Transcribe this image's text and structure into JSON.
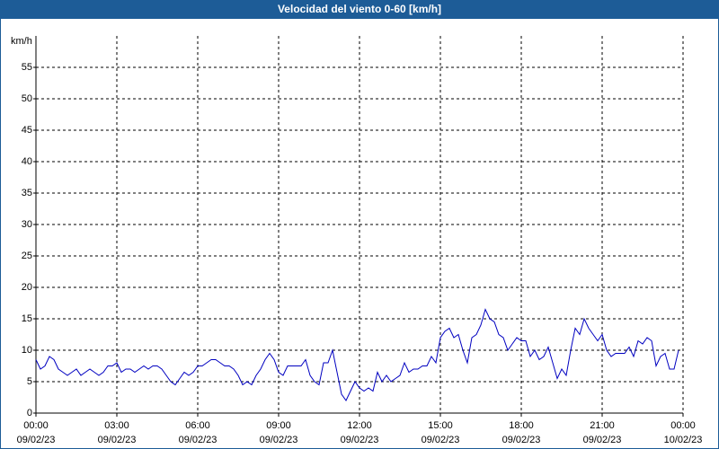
{
  "chart_data": {
    "type": "line",
    "title": "Velocidad del viento 0-60 [km/h]",
    "y_label": "km/h",
    "xlim": [
      0,
      1440
    ],
    "xticks": [
      {
        "value": 0,
        "label": "00:00"
      },
      {
        "value": 180,
        "label": "03:00"
      },
      {
        "value": 360,
        "label": "06:00"
      },
      {
        "value": 540,
        "label": "09:00"
      },
      {
        "value": 720,
        "label": "12:00"
      },
      {
        "value": 900,
        "label": "15:00"
      },
      {
        "value": 1080,
        "label": "18:00"
      },
      {
        "value": 1260,
        "label": "21:00"
      },
      {
        "value": 1440,
        "label": "00:00"
      }
    ],
    "xtick_dates": [
      "09/02/23",
      "09/02/23",
      "09/02/23",
      "09/02/23",
      "09/02/23",
      "09/02/23",
      "09/02/23",
      "09/02/23",
      "10/02/23"
    ],
    "ylim": [
      0,
      60
    ],
    "yticks": [
      0,
      5,
      10,
      15,
      20,
      25,
      30,
      35,
      40,
      45,
      50,
      55
    ],
    "grid": true,
    "series": [
      {
        "color": "#0000c0",
        "x": [
          0,
          10,
          20,
          30,
          40,
          50,
          60,
          70,
          80,
          90,
          100,
          110,
          120,
          130,
          140,
          150,
          160,
          170,
          180,
          190,
          200,
          210,
          220,
          230,
          240,
          250,
          260,
          270,
          280,
          290,
          300,
          310,
          320,
          330,
          340,
          350,
          360,
          370,
          380,
          390,
          400,
          410,
          420,
          430,
          440,
          450,
          460,
          470,
          480,
          490,
          500,
          510,
          520,
          530,
          540,
          550,
          560,
          570,
          580,
          590,
          600,
          610,
          620,
          630,
          640,
          650,
          660,
          670,
          680,
          690,
          700,
          710,
          720,
          730,
          740,
          750,
          760,
          770,
          780,
          790,
          800,
          810,
          820,
          830,
          840,
          850,
          860,
          870,
          880,
          890,
          900,
          910,
          920,
          930,
          940,
          950,
          960,
          970,
          980,
          990,
          1000,
          1010,
          1020,
          1030,
          1040,
          1050,
          1060,
          1070,
          1080,
          1090,
          1100,
          1110,
          1120,
          1130,
          1140,
          1150,
          1160,
          1170,
          1180,
          1190,
          1200,
          1210,
          1220,
          1230,
          1240,
          1250,
          1260,
          1270,
          1280,
          1290,
          1300,
          1310,
          1320,
          1330,
          1340,
          1350,
          1360,
          1370,
          1380,
          1390,
          1400,
          1410,
          1420,
          1430
        ],
        "values": [
          8.5,
          7,
          7.5,
          9,
          8.5,
          7,
          6.5,
          6,
          6.5,
          7,
          6,
          6.5,
          7,
          6.5,
          6,
          6.5,
          7.5,
          7.5,
          8,
          6.5,
          7,
          7,
          6.5,
          7,
          7.5,
          7,
          7.5,
          7.5,
          7,
          6,
          5,
          4.5,
          5.5,
          6.5,
          6,
          6.5,
          7.5,
          7.5,
          8,
          8.5,
          8.5,
          8,
          7.5,
          7.5,
          7,
          6,
          4.5,
          5,
          4.5,
          6,
          7,
          8.5,
          9.5,
          8.5,
          6.5,
          6,
          7.5,
          7.5,
          7.5,
          7.5,
          8.5,
          6,
          5,
          4.5,
          8,
          8,
          10,
          6.5,
          3,
          2,
          3.5,
          5,
          4,
          3.5,
          4,
          3.5,
          6.5,
          5,
          6,
          5,
          5.5,
          6,
          8,
          6.5,
          7,
          7,
          7.5,
          7.5,
          9,
          8,
          12,
          13,
          13.5,
          12,
          12.5,
          10,
          8,
          12,
          12.5,
          14,
          16.5,
          15,
          14.5,
          12.5,
          12,
          10,
          11,
          12,
          11.5,
          11.5,
          9,
          10,
          8.5,
          9,
          10.5,
          8,
          5.5,
          7,
          6,
          10,
          13.5,
          12.5,
          15,
          13.5,
          12.5,
          11.5,
          12.5,
          10,
          9,
          9.5,
          9.5,
          9.5,
          10.5,
          9,
          11.5,
          11,
          12,
          11.5,
          7.5,
          9,
          9.5,
          7,
          7,
          10
        ]
      }
    ]
  }
}
